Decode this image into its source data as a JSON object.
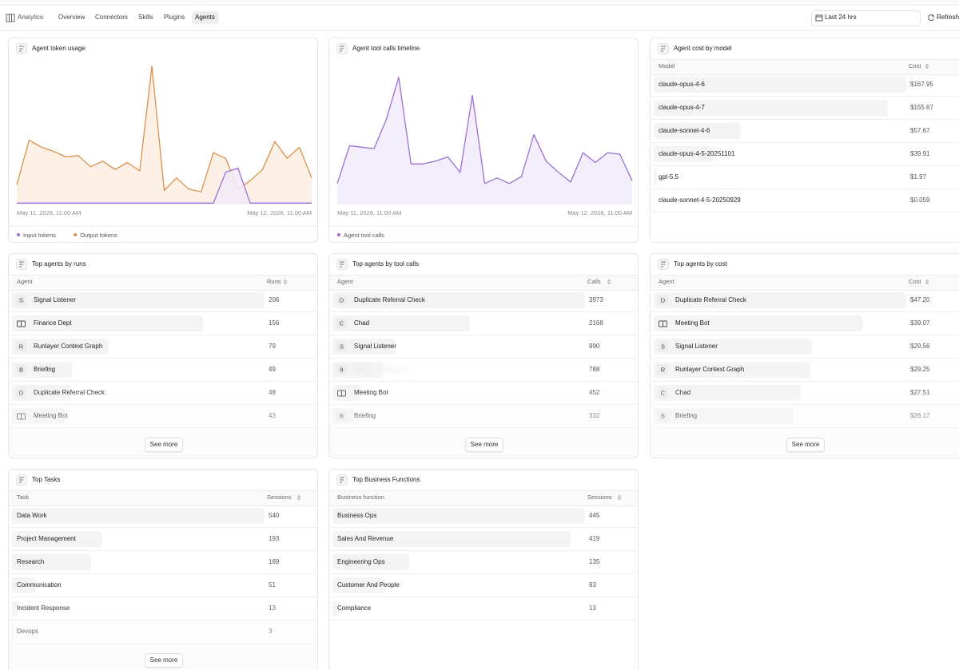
{
  "nav": {
    "brand": "Analytics",
    "tabs": [
      "Overview",
      "Connectors",
      "Skills",
      "Plugins",
      "Agents"
    ],
    "active_tab": 4,
    "range": "Last 24 hrs",
    "refresh": "Refresh"
  },
  "chart_data": [
    {
      "type": "area",
      "title": "Agent token usage",
      "x_axis_labels": [
        "May 11, 2026, 11:00 AM",
        "May 12, 2026, 11:00 AM"
      ],
      "ylim": [
        0,
        100
      ],
      "series": [
        {
          "name": "Input tokens",
          "color": "#9b6fd6",
          "fill": "#f1ebf9",
          "values": [
            1,
            1,
            1,
            1,
            1,
            1,
            1,
            1,
            1,
            1,
            1,
            1,
            1,
            1,
            1,
            1,
            1,
            23,
            26,
            1,
            1,
            1,
            1,
            1,
            1
          ]
        },
        {
          "name": "Output tokens",
          "color": "#d9904a",
          "fill": "#fdefe3",
          "values": [
            14,
            46,
            41,
            38,
            34,
            35,
            27,
            31,
            25,
            30,
            24,
            99,
            10,
            19,
            11,
            9,
            37,
            33,
            11,
            17,
            25,
            45,
            33,
            41,
            19
          ]
        }
      ]
    },
    {
      "type": "area",
      "title": "Agent tool calls timeline",
      "x_axis_labels": [
        "May 11, 2026, 11:00 AM",
        "May 12, 2026, 11:00 AM"
      ],
      "ylim": [
        0,
        100
      ],
      "series": [
        {
          "name": "Agent tool calls",
          "color": "#9b6fd6",
          "fill": "#f1ebfb",
          "values": [
            15,
            42,
            41,
            40,
            61,
            91,
            29,
            29,
            31,
            34,
            23,
            78,
            15,
            19,
            15,
            20,
            50,
            31,
            23,
            16,
            37,
            30,
            37,
            36,
            17
          ]
        }
      ]
    }
  ],
  "tables": [
    {
      "title": "Agent cost by model",
      "columns": [
        "Model",
        "Cost"
      ],
      "rows": [
        "claude-opus-4-6",
        "claude-opus-4-7",
        "claude-sonnet-4-6",
        "claude-opus-4-5-20251101",
        "gpt-5.5",
        "claude-sonnet-4-5-20250929"
      ],
      "values": [
        167.95,
        155.67,
        57.67,
        39.91,
        1.97,
        0.059
      ],
      "value_labels": [
        "$167.95",
        "$155.67",
        "$57.67",
        "$39.91",
        "$1.97",
        "$0.059"
      ]
    },
    {
      "title": "Top agents by runs",
      "columns": [
        "Agent",
        "Runs"
      ],
      "icons": [
        "S",
        null,
        "R",
        "B",
        "D",
        null
      ],
      "rows": [
        "Signal Listener",
        "Finance Dept",
        "Runlayer Context Graph",
        "Briefing",
        "Duplicate Referral Check",
        "Meeting Bot"
      ],
      "values": [
        206,
        156,
        79,
        49,
        48,
        43
      ],
      "see_more": "See more"
    },
    {
      "title": "Top agents by tool calls",
      "columns": [
        "Agent",
        "Calls"
      ],
      "icons": [
        "D",
        "C",
        "S",
        "9",
        null,
        "B"
      ],
      "rows": [
        "Duplicate Referral Check",
        "Chad",
        "Signal Listener",
        null,
        "Meeting Bot",
        "Briefing"
      ],
      "values": [
        3973,
        2168,
        990,
        788,
        452,
        332
      ],
      "see_more": "See more"
    },
    {
      "title": "Top agents by cost",
      "columns": [
        "Agent",
        "Cost"
      ],
      "icons": [
        "D",
        null,
        "S",
        "R",
        "C",
        "B"
      ],
      "rows": [
        "Duplicate Referral Check",
        "Meeting Bot",
        "Signal Listener",
        "Runlayer Context Graph",
        "Chad",
        "Briefing"
      ],
      "values": [
        47.2,
        39.07,
        29.56,
        29.25,
        27.51,
        26.17
      ],
      "value_labels": [
        "$47.20",
        "$39.07",
        "$29.56",
        "$29.25",
        "$27.51",
        "$26.17"
      ],
      "see_more": "See more"
    },
    {
      "title": "Top Tasks",
      "columns": [
        "Task",
        "Sessions"
      ],
      "rows": [
        "Data Work",
        "Project Management",
        "Research",
        "Communication",
        "Incident Response",
        "Devops"
      ],
      "values": [
        540,
        193,
        169,
        51,
        13,
        3
      ],
      "see_more": "See more"
    },
    {
      "title": "Top Business Functions",
      "columns": [
        "Business function",
        "Sessions"
      ],
      "rows": [
        "Business Ops",
        "Sales And Revenue",
        "Engineering Ops",
        "Customer And People",
        "Compliance"
      ],
      "values": [
        445,
        419,
        135,
        93,
        13
      ]
    }
  ]
}
